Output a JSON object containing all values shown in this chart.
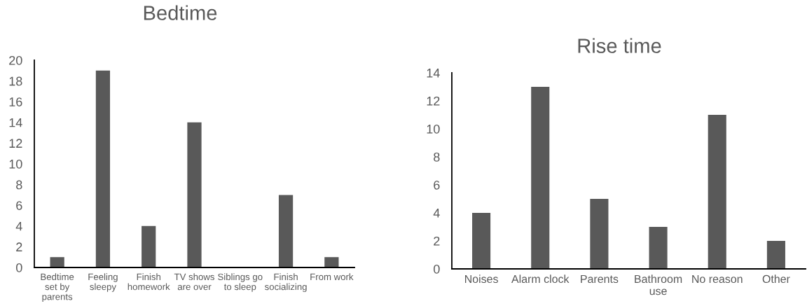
{
  "chart_data": [
    {
      "type": "bar",
      "title": "Bedtime",
      "categories": [
        "Bedtime set by parents",
        "Feeling sleepy",
        "Finish homework",
        "TV shows are over",
        "Siblings go to sleep",
        "Finish socializing",
        "From work"
      ],
      "values": [
        1,
        19,
        4,
        14,
        0,
        7,
        1
      ],
      "color": "#595959",
      "ylim": [
        0,
        20
      ],
      "yticks": [
        0,
        2,
        4,
        6,
        8,
        10,
        12,
        14,
        16,
        18,
        20
      ]
    },
    {
      "type": "bar",
      "title": "Rise time",
      "categories": [
        "Noises",
        "Alarm clock",
        "Parents",
        "Bathroom use",
        "No reason",
        "Other"
      ],
      "values": [
        4,
        13,
        5,
        3,
        11,
        2
      ],
      "color": "#595959",
      "ylim": [
        0,
        14
      ],
      "yticks": [
        0,
        2,
        4,
        6,
        8,
        10,
        12,
        14
      ]
    }
  ]
}
